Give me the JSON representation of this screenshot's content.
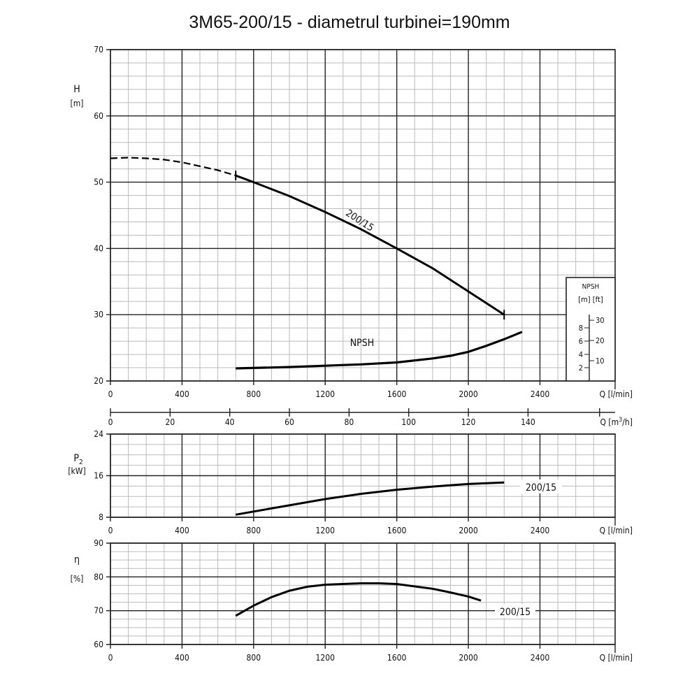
{
  "title": "3M65-200/15 - diametrul turbinei=190mm",
  "chart_data": [
    {
      "type": "line",
      "id": "head",
      "ylabel": "H",
      "yunit": "[m]",
      "xlabel": "Q [l/min]",
      "xlim": [
        0,
        2820
      ],
      "ylim": [
        20,
        70
      ],
      "xticks": [
        0,
        400,
        800,
        1200,
        1600,
        2000,
        2400
      ],
      "yticks": [
        20,
        30,
        40,
        50,
        60,
        70
      ],
      "grid": true,
      "secondary_xaxis": {
        "label": "Q [m3/h]",
        "ticks": [
          0,
          20,
          40,
          60,
          80,
          100,
          120,
          140
        ],
        "label_main": "Q [m",
        "label_sup": "3",
        "label_end": "/h]"
      },
      "series": [
        {
          "name": "200/15",
          "dashed_part": {
            "x": [
              0,
              100,
              200,
              300,
              400,
              500,
              600,
              700
            ],
            "y": [
              53.6,
              53.7,
              53.6,
              53.4,
              53.0,
              52.4,
              51.8,
              51.0
            ]
          },
          "x": [
            700,
            800,
            1000,
            1200,
            1400,
            1600,
            1800,
            2000,
            2200
          ],
          "y": [
            51.0,
            50.0,
            47.9,
            45.5,
            42.9,
            40.0,
            37.0,
            33.5,
            30.0
          ]
        },
        {
          "name": "NPSH",
          "x": [
            700,
            1000,
            1200,
            1400,
            1600,
            1800,
            1900,
            2000,
            2100,
            2200,
            2300
          ],
          "y": [
            1.9,
            2.1,
            2.3,
            2.5,
            2.8,
            3.4,
            3.8,
            4.4,
            5.3,
            6.3,
            7.4
          ]
        }
      ],
      "npsh_legend": {
        "title": "NPSH",
        "units": "[m] [ft]",
        "m_ticks": [
          2,
          4,
          6,
          8
        ],
        "ft_ticks": [
          10,
          20,
          30
        ]
      }
    },
    {
      "type": "line",
      "id": "power",
      "ylabel": "P",
      "ylabel_sub": "2",
      "yunit": "[kW]",
      "xlabel": "Q [l/min]",
      "xlim": [
        0,
        2820
      ],
      "ylim": [
        8,
        24
      ],
      "xticks": [
        0,
        400,
        800,
        1200,
        1600,
        2000,
        2400
      ],
      "yticks": [
        8,
        16,
        24
      ],
      "grid": true,
      "series": [
        {
          "name": "200/15",
          "x": [
            700,
            800,
            1000,
            1200,
            1400,
            1600,
            1800,
            2000,
            2200
          ],
          "y": [
            8.5,
            9.1,
            10.3,
            11.5,
            12.5,
            13.3,
            13.9,
            14.4,
            14.7
          ]
        }
      ]
    },
    {
      "type": "line",
      "id": "efficiency",
      "ylabel": "η",
      "yunit": "[%]",
      "xlabel": "Q [l/min]",
      "xlim": [
        0,
        2820
      ],
      "ylim": [
        60,
        90
      ],
      "xticks": [
        0,
        400,
        800,
        1200,
        1600,
        2000,
        2400
      ],
      "yticks": [
        60,
        70,
        80,
        90
      ],
      "grid": true,
      "series": [
        {
          "name": "200/15",
          "x": [
            700,
            800,
            900,
            1000,
            1100,
            1200,
            1400,
            1500,
            1600,
            1800,
            1900,
            2000,
            2070
          ],
          "y": [
            68.5,
            71.5,
            74.0,
            75.9,
            77.1,
            77.7,
            78.1,
            78.1,
            77.9,
            76.5,
            75.4,
            74.2,
            73.0
          ]
        }
      ]
    }
  ]
}
